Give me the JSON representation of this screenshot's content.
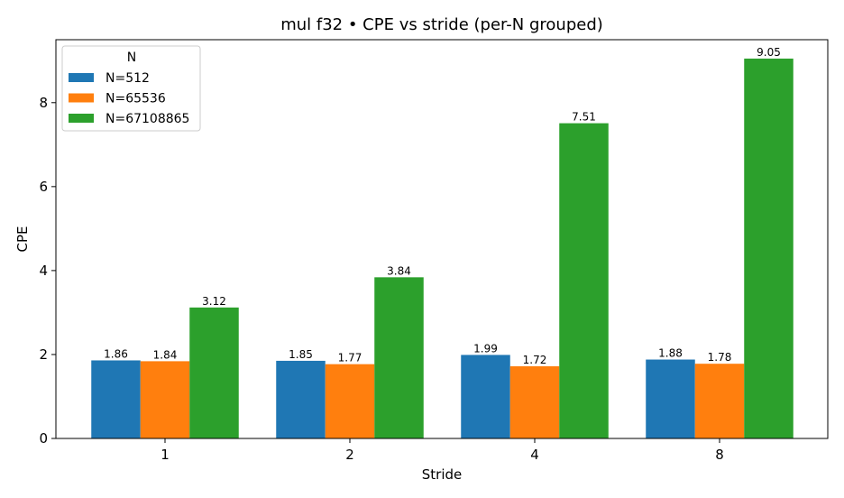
{
  "chart_data": {
    "type": "bar",
    "title": "mul f32 • CPE vs stride (per-N grouped)",
    "xlabel": "Stride",
    "ylabel": "CPE",
    "categories": [
      "1",
      "2",
      "4",
      "8"
    ],
    "ylim": [
      0,
      9.5
    ],
    "yticks": [
      0,
      2,
      4,
      6,
      8
    ],
    "grid": false,
    "legend": {
      "title": "N",
      "position": "top-left"
    },
    "series": [
      {
        "name": "N=512",
        "color": "#1f77b4",
        "values": [
          1.86,
          1.85,
          1.99,
          1.88
        ],
        "labels": [
          "1.86",
          "1.85",
          "1.99",
          "1.88"
        ]
      },
      {
        "name": "N=65536",
        "color": "#ff7f0e",
        "values": [
          1.84,
          1.77,
          1.72,
          1.78
        ],
        "labels": [
          "1.84",
          "1.77",
          "1.72",
          "1.78"
        ]
      },
      {
        "name": "N=67108865",
        "color": "#2ca02c",
        "values": [
          3.12,
          3.84,
          7.51,
          9.05
        ],
        "labels": [
          "3.12",
          "3.84",
          "7.51",
          "9.05"
        ]
      }
    ]
  }
}
